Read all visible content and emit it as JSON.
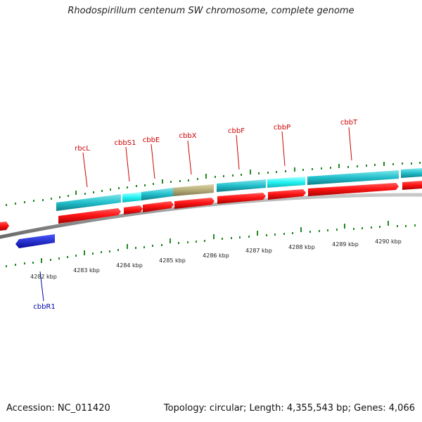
{
  "title": "Rhodospirillum centenum SW chromosome, complete genome",
  "footer": {
    "accession": "Accession: NC_011420",
    "topology": "Topology: circular; Length: 4,355,543 bp; Genes: 4,066"
  },
  "colors": {
    "forward_gene": "#ee1111",
    "reverse_gene": "#1a22cc",
    "cds_feature": "#22bfcc",
    "cds_feature_light": "#22f0f0",
    "misc_feature": "#b5ac78",
    "tick": "#228822",
    "backbone": "#8c8c8c",
    "label_forward": "#cc0000",
    "label_reverse": "#0000aa"
  },
  "scale": {
    "tick_labels": [
      "4282 kbp",
      "4283 kbp",
      "4284 kbp",
      "4285 kbp",
      "4286 kbp",
      "4287 kbp",
      "4288 kbp",
      "4289 kbp",
      "4290 kbp"
    ]
  },
  "genes": [
    {
      "name": "rbcL"
    },
    {
      "name": "cbbS1"
    },
    {
      "name": "cbbE"
    },
    {
      "name": "cbbX"
    },
    {
      "name": "cbbF"
    },
    {
      "name": "cbbP"
    },
    {
      "name": "cbbT"
    },
    {
      "name": "cbbR1"
    }
  ]
}
